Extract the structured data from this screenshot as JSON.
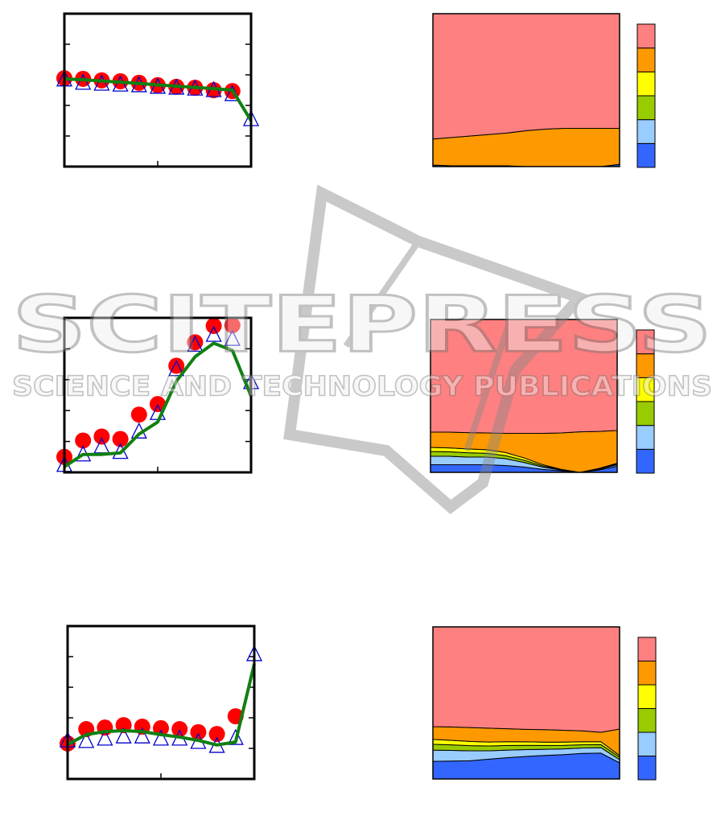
{
  "chart_data": [
    {
      "type": "line",
      "x": [
        0,
        1,
        2,
        3,
        4,
        5,
        6,
        7,
        8,
        9,
        10
      ],
      "xlim": [
        0,
        10
      ],
      "ylim": [
        0,
        5
      ],
      "xticks": [
        5
      ],
      "yticks": [
        1,
        2,
        3,
        4
      ],
      "series": [
        {
          "color": "#ff0000",
          "marker": "circle",
          "values": [
            2.89,
            2.87,
            2.82,
            2.79,
            2.74,
            2.66,
            2.61,
            2.58,
            2.5,
            2.47,
            null
          ]
        },
        {
          "color": "#0000cc",
          "marker": "triangle",
          "values": [
            2.85,
            2.74,
            2.71,
            2.68,
            2.66,
            2.61,
            2.58,
            2.55,
            2.5,
            2.37,
            1.55
          ]
        },
        {
          "color": "#108010",
          "marker": "line",
          "values": [
            2.87,
            2.84,
            2.8,
            2.76,
            2.72,
            2.67,
            2.63,
            2.59,
            2.55,
            2.5,
            1.5
          ]
        }
      ]
    },
    {
      "type": "area",
      "x": [
        0,
        1,
        2,
        3,
        4,
        5,
        6,
        7,
        8,
        9,
        10
      ],
      "xlim": [
        0,
        10
      ],
      "ylim": [
        0,
        100
      ],
      "series": [
        {
          "color": "#3366ff",
          "values": [
            1,
            0.5,
            0.5,
            0.5,
            0.5,
            0,
            0,
            0,
            0,
            0,
            1.5
          ]
        },
        {
          "color": "#99ccff",
          "values": [
            0,
            0,
            0,
            0,
            0,
            0,
            0,
            0,
            0,
            0,
            0
          ]
        },
        {
          "color": "#99cc00",
          "values": [
            0,
            0,
            0,
            0,
            0,
            0,
            0,
            0,
            0,
            0,
            0
          ]
        },
        {
          "color": "#ffff00",
          "values": [
            0,
            0,
            0,
            0,
            0,
            0,
            0,
            0,
            0,
            0,
            0
          ]
        },
        {
          "color": "#ff9900",
          "values": [
            17,
            18.5,
            19.5,
            20.5,
            21.5,
            23.5,
            24.5,
            25,
            25,
            25,
            23.5
          ]
        },
        {
          "color": "#ff8080",
          "values": [
            82,
            81,
            80,
            79,
            78,
            76.5,
            75.5,
            75,
            75,
            75,
            75
          ]
        }
      ]
    },
    {
      "type": "line",
      "x": [
        0,
        1,
        2,
        3,
        4,
        5,
        6,
        7,
        8,
        9,
        10
      ],
      "xlim": [
        0,
        10
      ],
      "ylim": [
        0,
        5
      ],
      "xticks": [
        5
      ],
      "yticks": [
        1,
        2,
        3,
        4
      ],
      "series": [
        {
          "color": "#ff0000",
          "marker": "circle",
          "values": [
            0.5,
            1.03,
            1.16,
            1.08,
            1.87,
            2.21,
            3.45,
            4.21,
            4.74,
            4.76,
            null
          ]
        },
        {
          "color": "#0000cc",
          "marker": "triangle",
          "values": [
            0.24,
            0.58,
            0.84,
            0.66,
            1.32,
            1.92,
            3.34,
            4.13,
            4.45,
            4.32,
            2.92
          ]
        },
        {
          "color": "#108010",
          "marker": "line",
          "values": [
            0.18,
            0.58,
            0.58,
            0.63,
            1.24,
            1.63,
            2.95,
            3.74,
            4.18,
            3.95,
            2.47
          ]
        }
      ]
    },
    {
      "type": "area",
      "x": [
        0,
        1,
        2,
        3,
        4,
        5,
        6,
        7,
        8,
        9,
        10
      ],
      "xlim": [
        0,
        10
      ],
      "ylim": [
        0,
        100
      ],
      "series": [
        {
          "color": "#3366ff",
          "values": [
            5,
            5,
            5,
            5,
            4.5,
            3.5,
            2,
            1,
            0,
            1.5,
            4
          ]
        },
        {
          "color": "#99ccff",
          "values": [
            5.5,
            5.5,
            5,
            5,
            4.5,
            3,
            1.5,
            0.5,
            0,
            0.5,
            1
          ]
        },
        {
          "color": "#99cc00",
          "values": [
            3.2,
            3,
            2.8,
            2.5,
            2,
            1.5,
            0.8,
            0.3,
            0,
            0.3,
            0.5
          ]
        },
        {
          "color": "#ffff00",
          "values": [
            2.6,
            2.5,
            2.5,
            2.3,
            2,
            1.5,
            0.8,
            0.2,
            0,
            0.2,
            0.5
          ]
        },
        {
          "color": "#ff9900",
          "values": [
            10,
            10.3,
            10.7,
            11,
            12.5,
            16,
            20.4,
            23.8,
            26.5,
            24.3,
            21.4
          ]
        },
        {
          "color": "#ff8080",
          "values": [
            73.7,
            73.7,
            74,
            74.2,
            74.5,
            74.5,
            74.5,
            74.2,
            73.5,
            73.2,
            72.6
          ]
        }
      ]
    },
    {
      "type": "line",
      "x": [
        0,
        1,
        2,
        3,
        4,
        5,
        6,
        7,
        8,
        9,
        10
      ],
      "xlim": [
        0,
        10
      ],
      "ylim": [
        0,
        5
      ],
      "xticks": [
        5
      ],
      "yticks": [
        1,
        2,
        3,
        4
      ],
      "series": [
        {
          "color": "#ff0000",
          "marker": "circle",
          "values": [
            1.16,
            1.63,
            1.68,
            1.76,
            1.71,
            1.66,
            1.63,
            1.53,
            1.47,
            2.05,
            null
          ]
        },
        {
          "color": "#0000cc",
          "marker": "triangle",
          "values": [
            1.26,
            1.24,
            1.32,
            1.39,
            1.39,
            1.32,
            1.32,
            1.21,
            1.08,
            1.34,
            4.08
          ]
        },
        {
          "color": "#108010",
          "marker": "line",
          "values": [
            1.13,
            1.45,
            1.55,
            1.58,
            1.55,
            1.45,
            1.37,
            1.26,
            1.11,
            1.21,
            3.76
          ]
        }
      ]
    },
    {
      "type": "area",
      "x": [
        0,
        1,
        2,
        3,
        4,
        5,
        6,
        7,
        8,
        9,
        10
      ],
      "xlim": [
        0,
        10
      ],
      "ylim": [
        0,
        100
      ],
      "series": [
        {
          "color": "#3366ff",
          "values": [
            11.6,
            11.8,
            12,
            13,
            14,
            14.8,
            15.5,
            16,
            16.8,
            17,
            10.6
          ]
        },
        {
          "color": "#99ccff",
          "values": [
            7.4,
            7,
            6.5,
            5.5,
            5,
            4.5,
            4,
            3.8,
            3.6,
            3.6,
            2.1
          ]
        },
        {
          "color": "#99cc00",
          "values": [
            3.8,
            3.6,
            3.4,
            3.2,
            3,
            2.8,
            2.5,
            2.3,
            2.1,
            2,
            1.6
          ]
        },
        {
          "color": "#ffff00",
          "values": [
            3.2,
            3,
            2.8,
            2.6,
            2.5,
            2.3,
            2.2,
            2.1,
            2,
            1.9,
            1.1
          ]
        },
        {
          "color": "#ff9900",
          "values": [
            8.4,
            8.8,
            9.1,
            9.1,
            8.5,
            8.2,
            8.2,
            7.8,
            7.1,
            6.2,
            17.4
          ]
        },
        {
          "color": "#ff8080",
          "values": [
            65.6,
            65.8,
            66.2,
            66.6,
            67,
            67.4,
            67.6,
            68,
            68.4,
            69.3,
            67.2
          ]
        }
      ]
    }
  ],
  "watermark": {
    "title": "SCITEPRESS",
    "subtitle": "SCIENCE AND TECHNOLOGY PUBLICATIONS"
  }
}
